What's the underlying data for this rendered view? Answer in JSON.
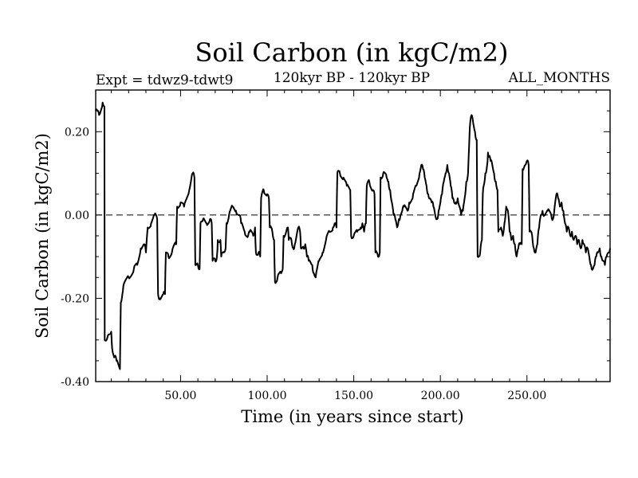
{
  "chart_data": {
    "type": "line",
    "title": "Soil Carbon (in kgC/m2)",
    "subtitle": "120kyr BP - 120kyr BP",
    "experiment": "Expt = tdwz9-tdwt9",
    "months": "ALL_MONTHS",
    "xlabel": "Time (in years since start)",
    "ylabel": "Soil Carbon (in kgC/m2)",
    "xlim": [
      1,
      298
    ],
    "ylim": [
      -0.4,
      0.3
    ],
    "xticks": [
      50,
      100,
      150,
      200,
      250
    ],
    "xtick_labels": [
      "50.00",
      "100.00",
      "150.00",
      "200.00",
      "250.00"
    ],
    "yticks": [
      -0.4,
      -0.2,
      0.0,
      0.2
    ],
    "ytick_labels": [
      "-0.40",
      "-0.20",
      "0.00",
      "0.20"
    ],
    "zero_line": true,
    "series": [
      {
        "name": "Soil Carbon",
        "color": "#000000",
        "points": [
          [
            1,
            0.25
          ],
          [
            3,
            0.24
          ],
          [
            5,
            0.27
          ],
          [
            6,
            0.26
          ],
          [
            6.2,
            -0.3
          ],
          [
            8,
            -0.29
          ],
          [
            10,
            -0.28
          ],
          [
            10.5,
            -0.32
          ],
          [
            12,
            -0.34
          ],
          [
            13,
            -0.35
          ],
          [
            15,
            -0.37
          ],
          [
            15.5,
            -0.21
          ],
          [
            17,
            -0.17
          ],
          [
            20,
            -0.15
          ],
          [
            23,
            -0.13
          ],
          [
            25,
            -0.12
          ],
          [
            27,
            -0.08
          ],
          [
            29,
            -0.07
          ],
          [
            30,
            -0.09
          ],
          [
            31,
            -0.03
          ],
          [
            33,
            -0.02
          ],
          [
            35,
            0.0
          ],
          [
            36.5,
            -0.01
          ],
          [
            37,
            -0.19
          ],
          [
            38,
            -0.2
          ],
          [
            40,
            -0.19
          ],
          [
            41,
            -0.19
          ],
          [
            41.5,
            -0.09
          ],
          [
            43,
            -0.1
          ],
          [
            45,
            -0.09
          ],
          [
            47,
            -0.07
          ],
          [
            47.5,
            -0.07
          ],
          [
            48,
            0.02
          ],
          [
            50,
            0.03
          ],
          [
            52,
            0.02
          ],
          [
            55,
            0.06
          ],
          [
            56,
            0.08
          ],
          [
            57,
            0.1
          ],
          [
            58,
            0.09
          ],
          [
            58.5,
            -0.12
          ],
          [
            60,
            -0.12
          ],
          [
            61,
            -0.13
          ],
          [
            61.5,
            -0.02
          ],
          [
            63,
            -0.01
          ],
          [
            65,
            -0.02
          ],
          [
            67,
            -0.01
          ],
          [
            68,
            -0.02
          ],
          [
            68.5,
            -0.11
          ],
          [
            70,
            -0.11
          ],
          [
            71,
            -0.1
          ],
          [
            71.5,
            -0.06
          ],
          [
            73,
            -0.06
          ],
          [
            73.5,
            -0.1
          ],
          [
            75,
            -0.09
          ],
          [
            76,
            -0.08
          ],
          [
            76.5,
            -0.02
          ],
          [
            78,
            0.0
          ],
          [
            80,
            0.02
          ],
          [
            82,
            0.01
          ],
          [
            84,
            0.0
          ],
          [
            85,
            -0.02
          ],
          [
            87,
            -0.04
          ],
          [
            89,
            -0.05
          ],
          [
            90,
            -0.04
          ],
          [
            92,
            -0.05
          ],
          [
            93,
            -0.03
          ],
          [
            93.5,
            -0.09
          ],
          [
            95,
            -0.09
          ],
          [
            96,
            -0.1
          ],
          [
            96.5,
            0.04
          ],
          [
            98,
            0.06
          ],
          [
            100,
            0.05
          ],
          [
            101,
            0.04
          ],
          [
            101.5,
            -0.03
          ],
          [
            103,
            -0.04
          ],
          [
            104,
            -0.06
          ],
          [
            104.5,
            -0.16
          ],
          [
            106,
            -0.15
          ],
          [
            108,
            -0.14
          ],
          [
            109,
            -0.13
          ],
          [
            109.5,
            -0.05
          ],
          [
            111,
            -0.04
          ],
          [
            112,
            -0.03
          ],
          [
            112.5,
            -0.06
          ],
          [
            114,
            -0.06
          ],
          [
            115,
            -0.08
          ],
          [
            116,
            -0.07
          ],
          [
            118,
            -0.03
          ],
          [
            119,
            -0.04
          ],
          [
            119.5,
            -0.08
          ],
          [
            121,
            -0.08
          ],
          [
            122,
            -0.07
          ],
          [
            123,
            -0.1
          ],
          [
            124,
            -0.11
          ],
          [
            126,
            -0.12
          ],
          [
            127,
            -0.14
          ],
          [
            128,
            -0.15
          ],
          [
            130,
            -0.11
          ],
          [
            132,
            -0.09
          ],
          [
            134,
            -0.06
          ],
          [
            136,
            -0.04
          ],
          [
            138,
            -0.03
          ],
          [
            139,
            -0.02
          ],
          [
            140,
            -0.03
          ],
          [
            140.5,
            0.1
          ],
          [
            142,
            0.1
          ],
          [
            144,
            0.09
          ],
          [
            146,
            0.07
          ],
          [
            148,
            0.06
          ],
          [
            148.5,
            -0.05
          ],
          [
            150,
            -0.05
          ],
          [
            152,
            -0.04
          ],
          [
            154,
            -0.03
          ],
          [
            155,
            -0.02
          ],
          [
            156,
            -0.04
          ],
          [
            157,
            -0.02
          ],
          [
            157.5,
            0.07
          ],
          [
            159,
            0.08
          ],
          [
            161,
            0.06
          ],
          [
            162,
            0.05
          ],
          [
            162.5,
            -0.09
          ],
          [
            164,
            -0.1
          ],
          [
            165,
            -0.09
          ],
          [
            165.5,
            0.09
          ],
          [
            167,
            0.1
          ],
          [
            169,
            0.09
          ],
          [
            170,
            0.08
          ],
          [
            171,
            0.06
          ],
          [
            172,
            0.03
          ],
          [
            173,
            0.0
          ],
          [
            174,
            -0.01
          ],
          [
            175,
            -0.03
          ],
          [
            176,
            -0.01
          ],
          [
            177,
            0.0
          ],
          [
            178,
            0.01
          ],
          [
            179,
            0.02
          ],
          [
            181,
            0.01
          ],
          [
            182,
            0.03
          ],
          [
            184,
            0.04
          ],
          [
            186,
            0.07
          ],
          [
            188,
            0.1
          ],
          [
            189,
            0.12
          ],
          [
            190,
            0.11
          ],
          [
            191,
            0.09
          ],
          [
            192,
            0.07
          ],
          [
            193,
            0.05
          ],
          [
            194,
            0.04
          ],
          [
            195,
            0.03
          ],
          [
            196,
            0.02
          ],
          [
            197,
            0.0
          ],
          [
            198,
            -0.01
          ],
          [
            199,
            0.01
          ],
          [
            200,
            0.03
          ],
          [
            201,
            0.05
          ],
          [
            202,
            0.08
          ],
          [
            203,
            0.1
          ],
          [
            204,
            0.12
          ],
          [
            205,
            0.1
          ],
          [
            206,
            0.07
          ],
          [
            207,
            0.04
          ],
          [
            208,
            0.03
          ],
          [
            209,
            0.03
          ],
          [
            210,
            0.04
          ],
          [
            211,
            0.02
          ],
          [
            212,
            0.0
          ],
          [
            213,
            0.01
          ],
          [
            214,
            0.04
          ],
          [
            215,
            0.08
          ],
          [
            216,
            0.1
          ],
          [
            217,
            0.21
          ],
          [
            218,
            0.24
          ],
          [
            219,
            0.22
          ],
          [
            220,
            0.2
          ],
          [
            221,
            0.18
          ],
          [
            221.5,
            -0.1
          ],
          [
            223,
            -0.09
          ],
          [
            224,
            -0.06
          ],
          [
            224.5,
            0.05
          ],
          [
            225,
            0.07
          ],
          [
            226,
            0.1
          ],
          [
            227,
            0.12
          ],
          [
            227.5,
            0.15
          ],
          [
            228,
            0.14
          ],
          [
            229,
            0.13
          ],
          [
            230,
            0.12
          ],
          [
            231,
            0.1
          ],
          [
            232,
            0.08
          ],
          [
            233,
            0.06
          ],
          [
            233.5,
            -0.04
          ],
          [
            235,
            -0.03
          ],
          [
            236,
            -0.05
          ],
          [
            237,
            -0.02
          ],
          [
            238,
            0.02
          ],
          [
            239,
            0.01
          ],
          [
            240,
            -0.04
          ],
          [
            241,
            -0.06
          ],
          [
            242,
            -0.05
          ],
          [
            243,
            -0.07
          ],
          [
            244,
            -0.1
          ],
          [
            245,
            -0.08
          ],
          [
            246,
            -0.07
          ],
          [
            247,
            -0.07
          ],
          [
            247.5,
            0.11
          ],
          [
            249,
            0.12
          ],
          [
            250,
            0.13
          ],
          [
            251,
            0.12
          ],
          [
            251.5,
            -0.04
          ],
          [
            253,
            -0.05
          ],
          [
            254,
            -0.08
          ],
          [
            255,
            -0.09
          ],
          [
            256,
            -0.07
          ],
          [
            257,
            -0.03
          ],
          [
            258,
            0.0
          ],
          [
            259,
            0.01
          ],
          [
            260,
            0.0
          ],
          [
            262,
            0.01
          ],
          [
            264,
            0.0
          ],
          [
            265,
            -0.01
          ],
          [
            266,
            0.02
          ],
          [
            267,
            0.05
          ],
          [
            268,
            0.04
          ],
          [
            269,
            0.02
          ],
          [
            270,
            0.03
          ],
          [
            271,
            0.01
          ],
          [
            272,
            -0.02
          ],
          [
            273,
            -0.04
          ],
          [
            274,
            -0.03
          ],
          [
            275,
            -0.05
          ],
          [
            276,
            -0.04
          ],
          [
            277,
            -0.06
          ],
          [
            278,
            -0.05
          ],
          [
            279,
            -0.07
          ],
          [
            280,
            -0.06
          ],
          [
            281,
            -0.08
          ],
          [
            282,
            -0.06
          ],
          [
            283,
            -0.07
          ],
          [
            284,
            -0.09
          ],
          [
            285,
            -0.08
          ],
          [
            286,
            -0.1
          ],
          [
            287,
            -0.12
          ],
          [
            288,
            -0.13
          ],
          [
            289,
            -0.12
          ],
          [
            290,
            -0.1
          ],
          [
            291,
            -0.09
          ],
          [
            292,
            -0.08
          ],
          [
            293,
            -0.1
          ],
          [
            294,
            -0.11
          ],
          [
            295,
            -0.12
          ],
          [
            296,
            -0.1
          ],
          [
            297,
            -0.09
          ],
          [
            298,
            -0.08
          ]
        ]
      }
    ]
  }
}
